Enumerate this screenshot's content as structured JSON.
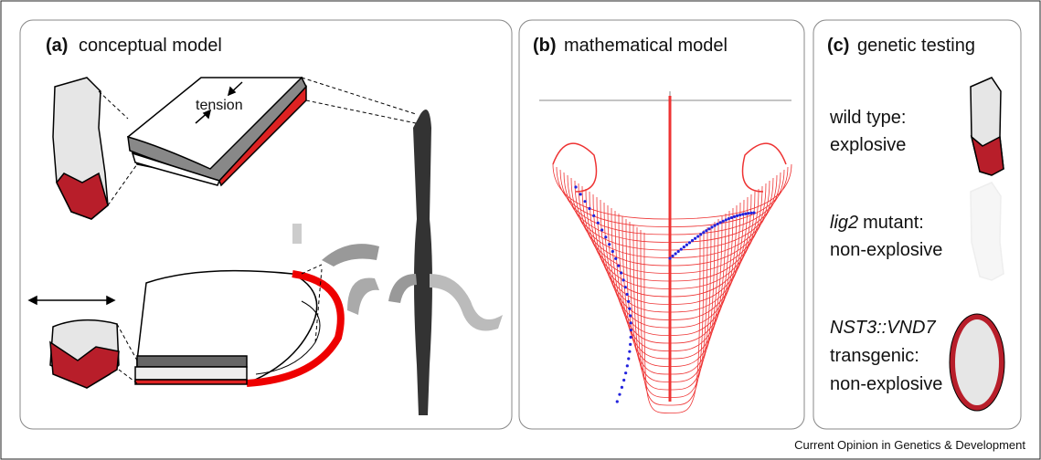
{
  "panels": [
    {
      "label": "(a)",
      "title": "conceptual model",
      "annotation": "tension"
    },
    {
      "label": "(b)",
      "title": "mathematical model"
    },
    {
      "label": "(c)",
      "title": "genetic testing",
      "items": [
        {
          "line1": "wild type:",
          "line2": "explosive"
        },
        {
          "gene": "lig2",
          "line1": "mutant:",
          "line2": "non-explosive"
        },
        {
          "gene": "NST3::VND7",
          "line1": "transgenic:",
          "line2": "non-explosive"
        }
      ]
    }
  ],
  "footer": "Current Opinion in Genetics & Development"
}
